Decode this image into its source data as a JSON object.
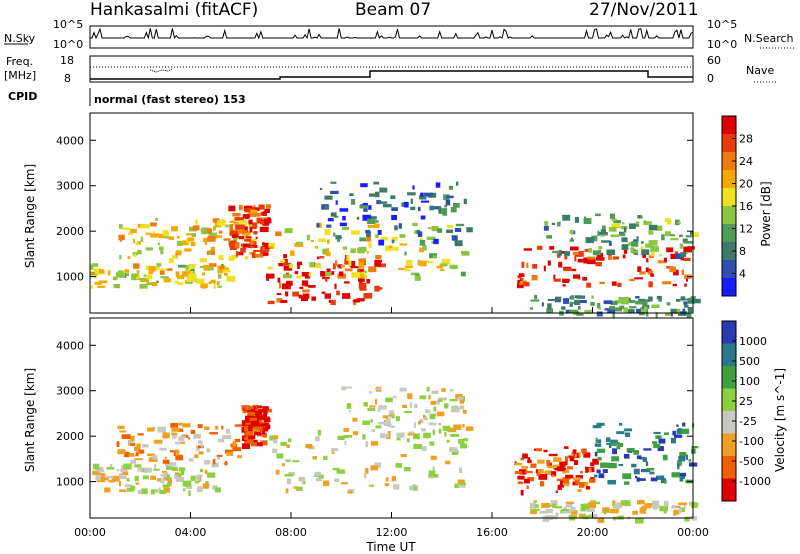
{
  "header": {
    "station": "Hankasalmi (fitACF)",
    "beam": "Beam 07",
    "date": "27/Nov/2011"
  },
  "panels": {
    "noise": {
      "left_label": "N.Sky",
      "right_label": "N.Search",
      "ticks_left": [
        "10^5",
        "10^0"
      ],
      "ticks_right": [
        "10^5",
        "10^0"
      ]
    },
    "freq": {
      "left_label_line1": "Freq.",
      "left_label_line2": "[MHz]",
      "right_label": "Nave",
      "ticks_left": [
        "18",
        "8"
      ],
      "ticks_right": [
        "60",
        "0"
      ]
    },
    "cpid": {
      "label": "CPID",
      "mode_text": "normal (fast stereo) 153"
    }
  },
  "colors": {
    "power_scale": [
      "#1a1aff",
      "#2d4fb0",
      "#3d7a6a",
      "#4f9a58",
      "#8cc63f",
      "#f0e020",
      "#f5a800",
      "#f07a10",
      "#e83a0a",
      "#e00000"
    ],
    "velocity_scale": [
      "#e00000",
      "#f06000",
      "#f0a020",
      "#c8c8c0",
      "#8cd040",
      "#40a040",
      "#2a7a8a",
      "#2a3ab0"
    ],
    "ground_scatter": "#c0c0b8"
  },
  "chart_data": [
    {
      "type": "heatmap",
      "title": "Power",
      "xlabel": "",
      "ylabel": "Slant Range [km]",
      "x_ticks": [
        "00:00",
        "04:00",
        "08:00",
        "12:00",
        "16:00",
        "20:00",
        "00:00"
      ],
      "y_ticks": [
        "1000",
        "2000",
        "3000",
        "4000"
      ],
      "ylim": [
        200,
        4600
      ],
      "colorbar": {
        "label": "Power [dB]",
        "ticks": [
          "4",
          "8",
          "12",
          "16",
          "20",
          "24",
          "28"
        ]
      },
      "regions": [
        {
          "t0": 0.0,
          "t1": 5.5,
          "r0": 800,
          "r1": 1300,
          "level": 0.55
        },
        {
          "t0": 1.0,
          "t1": 6.5,
          "r0": 1400,
          "r1": 2300,
          "level": 0.6
        },
        {
          "t0": 5.5,
          "t1": 7.0,
          "r0": 1500,
          "r1": 2600,
          "level": 0.85
        },
        {
          "t0": 7.0,
          "t1": 11.5,
          "r0": 400,
          "r1": 1500,
          "level": 0.92
        },
        {
          "t0": 7.0,
          "t1": 15.0,
          "r0": 1000,
          "r1": 2200,
          "level": 0.55
        },
        {
          "t0": 9.0,
          "t1": 15.0,
          "r0": 1800,
          "r1": 3100,
          "level": 0.2
        },
        {
          "t0": 16.8,
          "t1": 24.0,
          "r0": 800,
          "r1": 1700,
          "level": 0.9
        },
        {
          "t0": 18.0,
          "t1": 24.0,
          "r0": 1500,
          "r1": 2400,
          "level": 0.35
        },
        {
          "t0": 17.5,
          "t1": 24.0,
          "r0": 200,
          "r1": 600,
          "level": 0.3
        }
      ]
    },
    {
      "type": "heatmap",
      "title": "Velocity",
      "xlabel": "Time UT",
      "ylabel": "Slant Range [km]",
      "x_ticks": [
        "00:00",
        "04:00",
        "08:00",
        "12:00",
        "16:00",
        "20:00",
        "00:00"
      ],
      "y_ticks": [
        "1000",
        "2000",
        "3000",
        "4000"
      ],
      "ylim": [
        200,
        4600
      ],
      "colorbar": {
        "label": "Velocity [m s^-1]",
        "ticks": [
          "1000",
          "500",
          "100",
          "25",
          "-25",
          "-100",
          "-500",
          "-1000"
        ]
      },
      "regions": [
        {
          "t0": 0.0,
          "t1": 5.0,
          "r0": 800,
          "r1": 1400,
          "level": 0.45
        },
        {
          "t0": 1.0,
          "t1": 6.5,
          "r0": 1400,
          "r1": 2300,
          "level": 0.3
        },
        {
          "t0": 6.0,
          "t1": 7.0,
          "r0": 1800,
          "r1": 2700,
          "level": 0.05
        },
        {
          "t0": 7.0,
          "t1": 15.0,
          "r0": 800,
          "r1": 2200,
          "level": 0.45
        },
        {
          "t0": 10.0,
          "t1": 15.0,
          "r0": 2000,
          "r1": 3100,
          "level": 0.45
        },
        {
          "t0": 16.8,
          "t1": 20.0,
          "r0": 800,
          "r1": 1800,
          "level": 0.15
        },
        {
          "t0": 20.0,
          "t1": 24.0,
          "r0": 1000,
          "r1": 2300,
          "level": 0.8
        },
        {
          "t0": 17.5,
          "t1": 24.0,
          "r0": 200,
          "r1": 600,
          "level": 0.45
        }
      ]
    }
  ]
}
